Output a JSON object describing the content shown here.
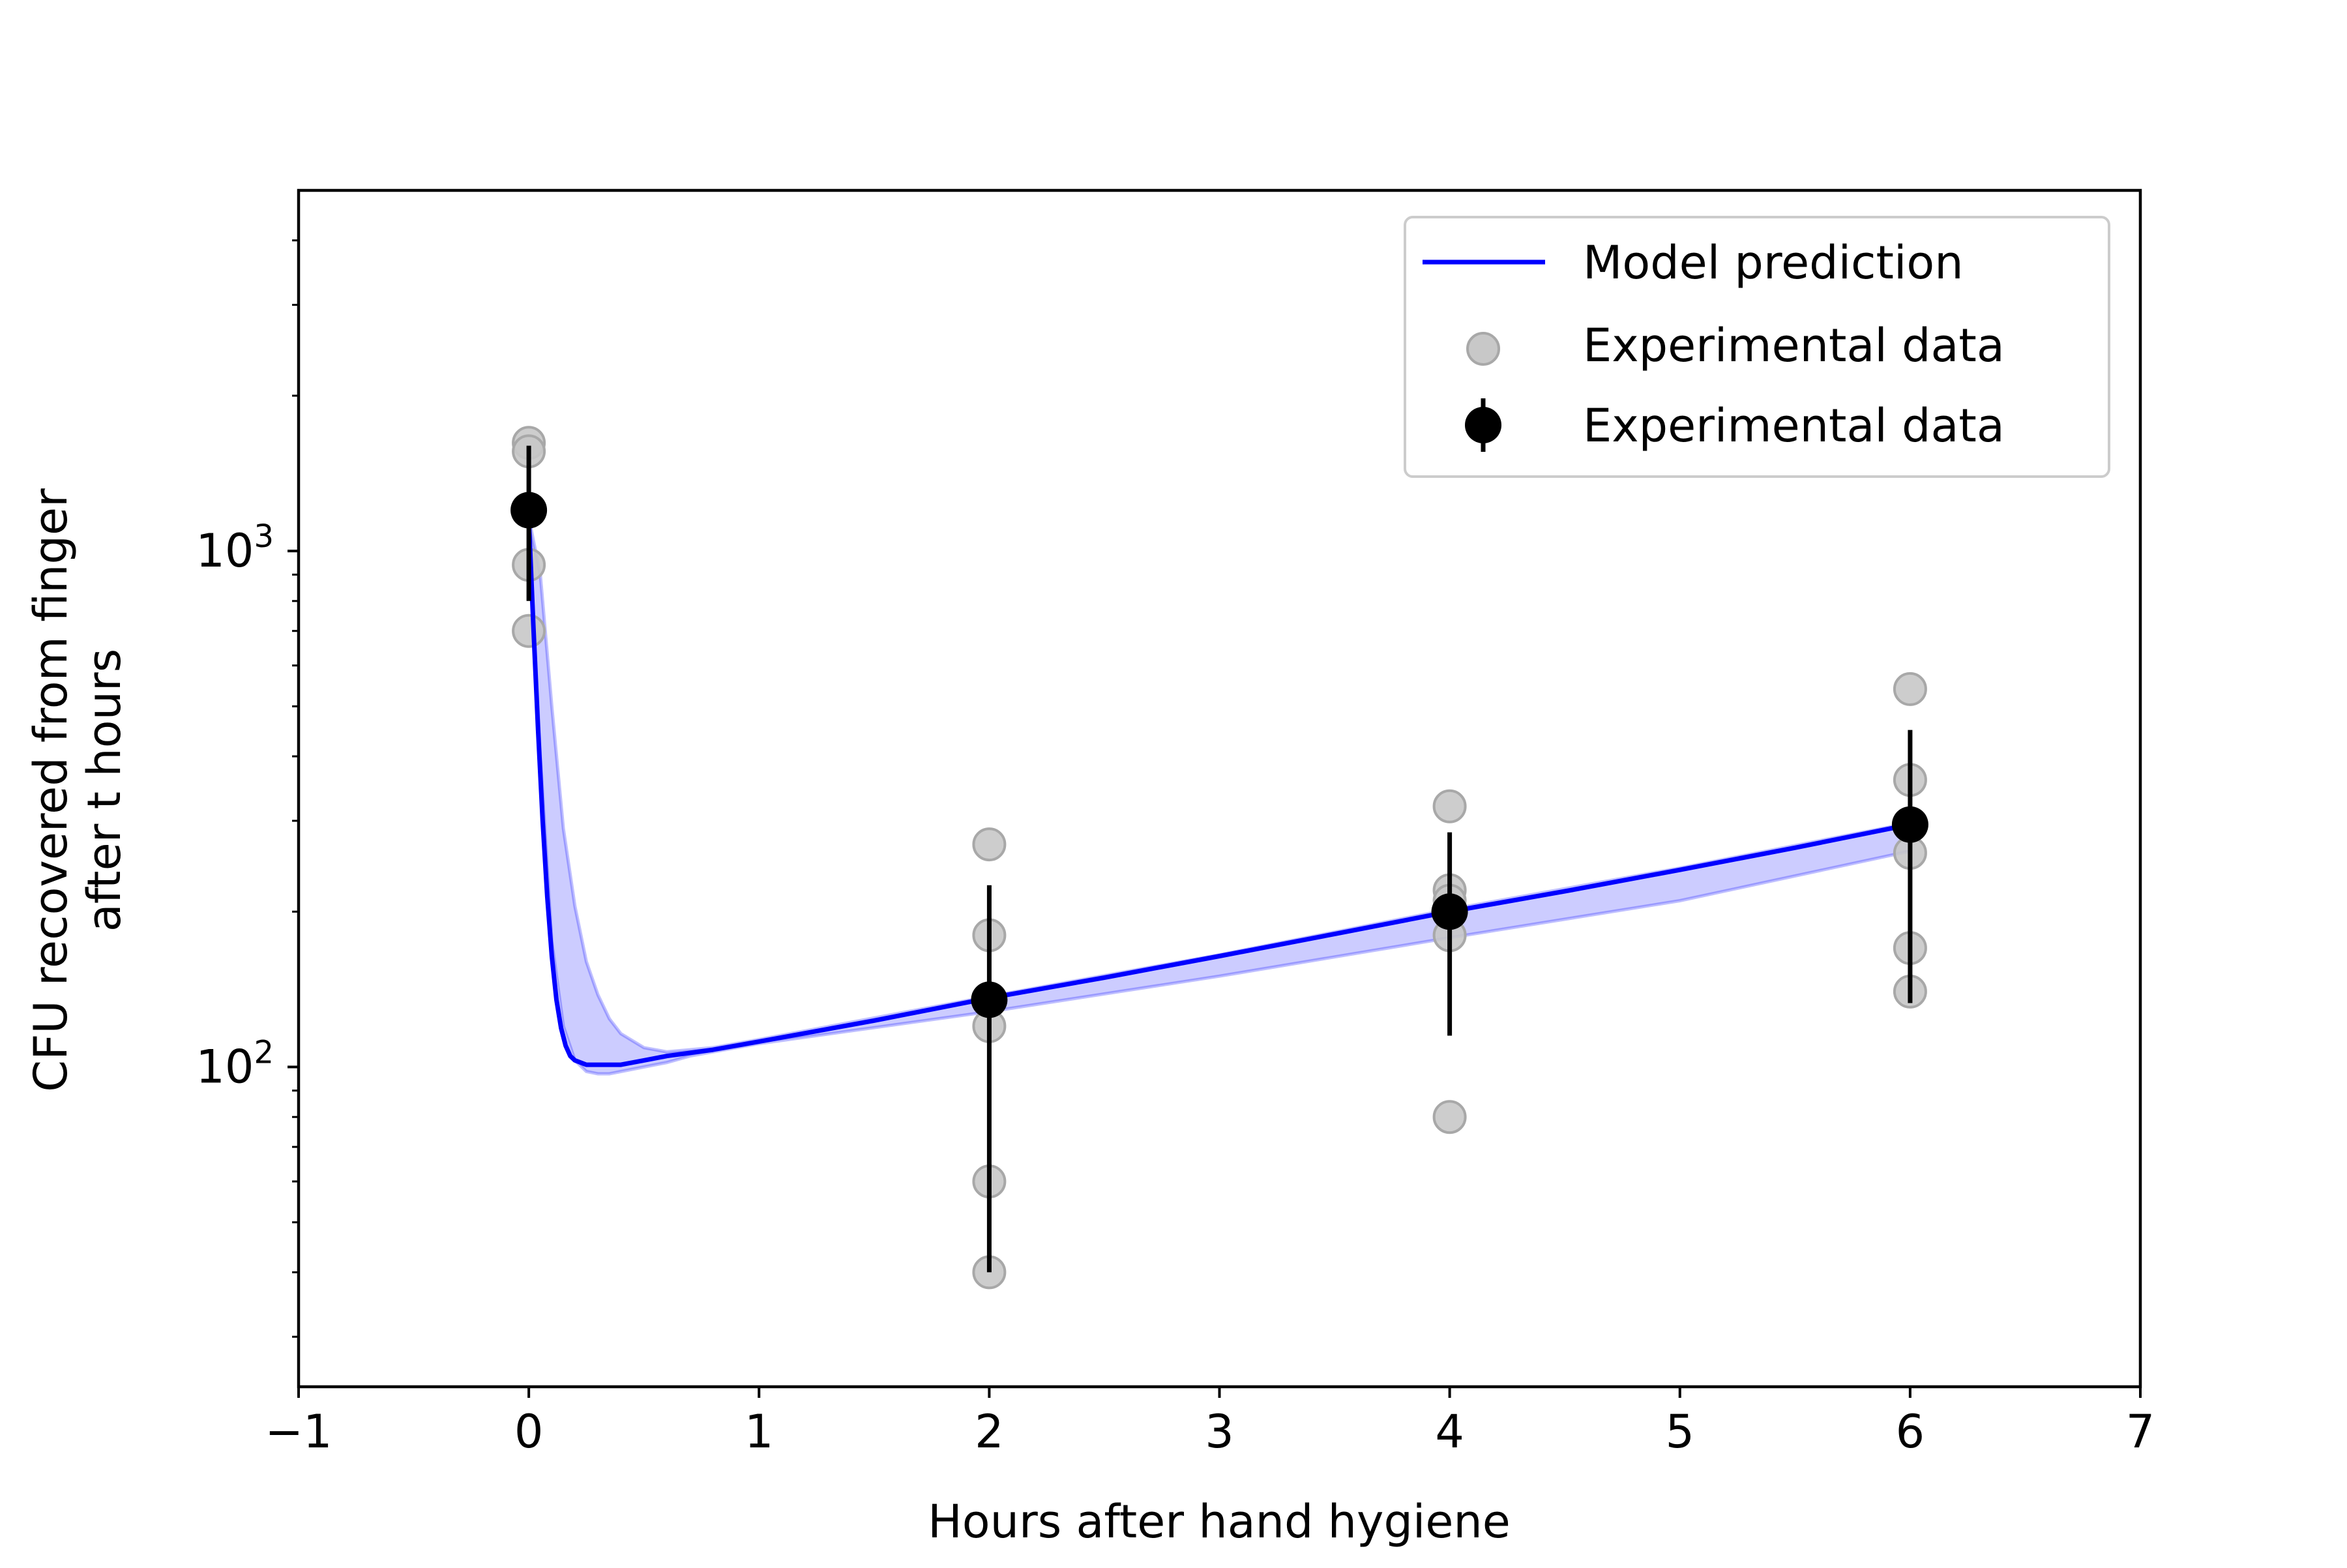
{
  "chart_data": {
    "type": "line",
    "title": "",
    "xlabel": "Hours after hand hygiene",
    "ylabel_lines": [
      "CFU recovered from finger",
      "after t hours"
    ],
    "xlim": [
      -1,
      7
    ],
    "ylim": [
      24,
      5000
    ],
    "yscale": "log",
    "grid": false,
    "legend_position": "upper right",
    "x_ticks": [
      -1,
      0,
      1,
      2,
      3,
      4,
      5,
      6,
      7
    ],
    "x_tick_labels": [
      "−1",
      "0",
      "1",
      "2",
      "3",
      "4",
      "5",
      "6",
      "7"
    ],
    "y_ticks": [
      100,
      1000
    ],
    "y_tick_base": [
      "10",
      "10"
    ],
    "y_tick_exp": [
      "2",
      "3"
    ],
    "y_minor_ticks": [
      30,
      40,
      50,
      60,
      70,
      80,
      90,
      200,
      300,
      400,
      500,
      600,
      700,
      800,
      900,
      2000,
      3000,
      4000
    ],
    "colors": {
      "model": "#0000ff",
      "band": "#0000ff",
      "scatter_fill": "#c8c8c8",
      "scatter_edge": "#a8a8a8",
      "mean": "#000000"
    },
    "series": [
      {
        "name": "Model prediction",
        "kind": "line",
        "x": [
          0.0,
          0.02,
          0.04,
          0.06,
          0.08,
          0.1,
          0.12,
          0.14,
          0.16,
          0.18,
          0.2,
          0.25,
          0.3,
          0.35,
          0.4,
          0.5,
          0.6,
          0.8,
          1.0,
          1.5,
          2.0,
          2.5,
          3.0,
          3.5,
          4.0,
          4.5,
          5.0,
          5.5,
          6.0
        ],
        "y": [
          1160,
          712,
          451,
          301,
          214,
          164,
          135,
          119,
          110,
          105,
          103,
          101,
          101,
          101,
          101,
          103,
          105,
          108,
          112,
          123,
          136,
          149,
          164,
          181,
          200,
          219,
          241,
          266,
          295
        ]
      },
      {
        "name": "",
        "kind": "band",
        "x": [
          0.0,
          0.05,
          0.1,
          0.15,
          0.2,
          0.25,
          0.3,
          0.35,
          0.4,
          0.5,
          0.6,
          0.7,
          0.8,
          1.0,
          2.0,
          3.0,
          4.0,
          5.0,
          6.0
        ],
        "y_low": [
          1160,
          400,
          175,
          120,
          103,
          98,
          97,
          97,
          98,
          100,
          102,
          105,
          107,
          111,
          128,
          150,
          178,
          210,
          262
        ],
        "y_high": [
          1160,
          900,
          500,
          290,
          205,
          160,
          138,
          124,
          116,
          109,
          107,
          108,
          109,
          113,
          137,
          165,
          202,
          243,
          297
        ]
      },
      {
        "name": "Experimental data",
        "kind": "scatter",
        "x": [
          0,
          0,
          0,
          0,
          0,
          2,
          2,
          2,
          2,
          2,
          4,
          4,
          4,
          4,
          4,
          6,
          6,
          6,
          6,
          6
        ],
        "y": [
          1620,
          1560,
          940,
          700,
          1200,
          270,
          180,
          120,
          60,
          40,
          320,
          220,
          210,
          180,
          80,
          540,
          360,
          260,
          170,
          140
        ]
      },
      {
        "name": "Experimental data",
        "kind": "errorbar",
        "x": [
          0,
          2,
          4,
          6
        ],
        "y": [
          1200,
          135,
          200,
          295
        ],
        "y_low": [
          800,
          40,
          115,
          133
        ],
        "y_high": [
          1600,
          225,
          285,
          450
        ]
      }
    ],
    "legend": [
      {
        "label": "Model prediction",
        "marker": "line"
      },
      {
        "label": "Experimental data",
        "marker": "grey-circle"
      },
      {
        "label": "Experimental data",
        "marker": "errorbar"
      }
    ]
  }
}
